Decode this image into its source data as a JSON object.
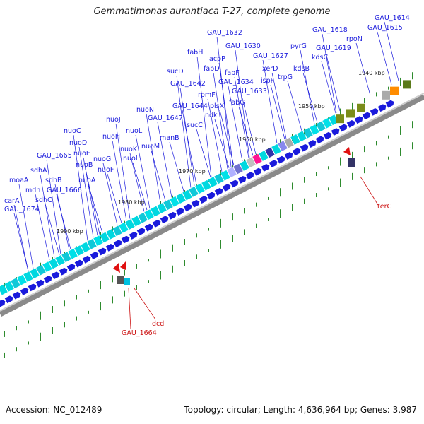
{
  "title": "Gemmatimonas aurantiaca T-27, complete genome",
  "footer": {
    "accession": "Accession: NC_012489",
    "stats": "Topology: circular; Length: 4,636,964 bp; Genes: 3,987"
  },
  "colors": {
    "forward_arrow": "#1a1adc",
    "label_line": "#1a1adc",
    "reverse_marker": "#e01010",
    "reverse_label": "#cc1111",
    "backbone": "#888888",
    "gc_ticks": "#2e8b2e",
    "cog_main": "#00d8e0"
  },
  "kbp_ticks": [
    "1990 kbp",
    "1980 kbp",
    "1970 kbp",
    "1960 kbp",
    "1950 kbp",
    "1940 kbp"
  ],
  "forward_labels": [
    "GAU_1614",
    "GAU_1615",
    "rpoN",
    "GAU_1618",
    "GAU_1619",
    "kdsC",
    "kdsB",
    "pyrG",
    "GAU_1627",
    "xerD",
    "trpG",
    "ispF",
    "GAU_1630",
    "GAU_1632",
    "fabH",
    "acpP",
    "fabD",
    "fabF",
    "GAU_1634",
    "GAU_1633",
    "fabG",
    "plsX",
    "sucD",
    "GAU_1642",
    "rpmF",
    "GAU_1644",
    "ndk",
    "GAU_1647",
    "sucC",
    "nuoN",
    "nuoM",
    "manB",
    "nuoJ",
    "nuoL",
    "nuoH",
    "nuoK",
    "nuoI",
    "nuoG",
    "nuoF",
    "nuoC",
    "nuoD",
    "nuoE",
    "nuoB",
    "GAU_1665",
    "sdhA",
    "sdhB",
    "nuoA",
    "moaA",
    "mdh",
    "GAU_1666",
    "sdhC",
    "carA",
    "GAU_1674"
  ],
  "reverse_labels": [
    "terC",
    "dcd",
    "GAU_1664"
  ]
}
